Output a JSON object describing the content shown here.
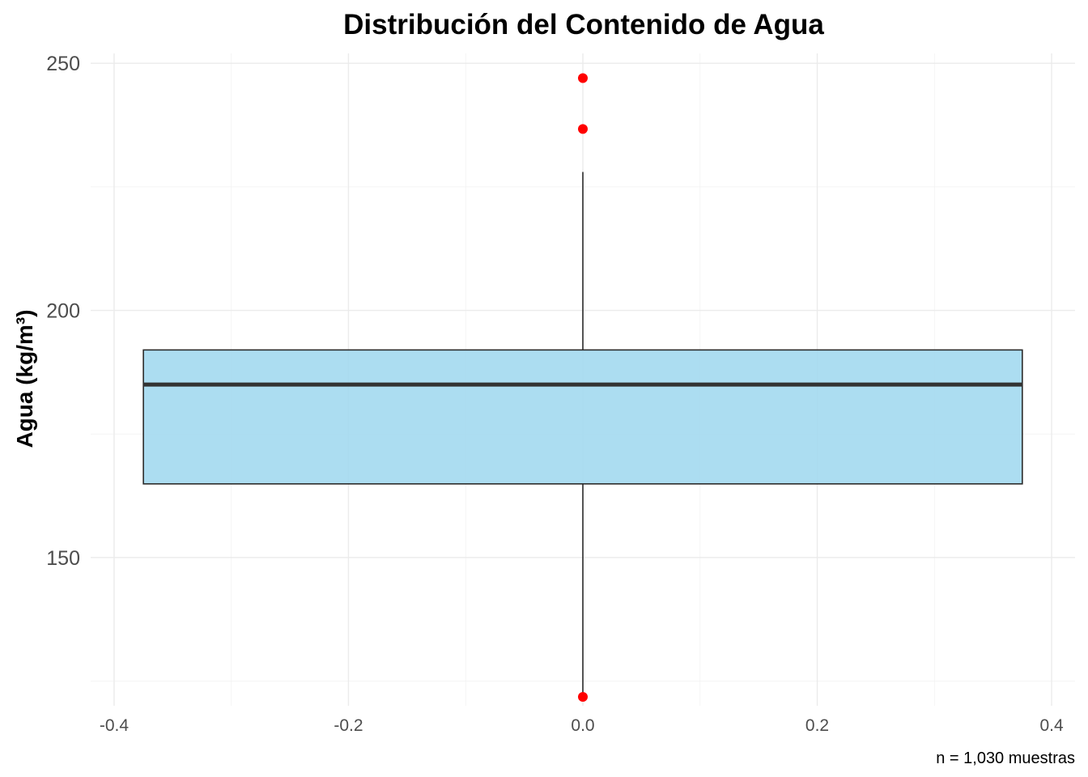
{
  "chart_data": {
    "type": "boxplot",
    "title": "Distribución del Contenido de Agua",
    "ylabel": "Agua (kg/m³)",
    "xlabel": "",
    "caption": "n = 1,030 muestras",
    "xlim": [
      -0.42,
      0.42
    ],
    "ylim": [
      120,
      252
    ],
    "x_ticks": [
      -0.4,
      -0.2,
      0.0,
      0.2,
      0.4
    ],
    "x_tick_labels": [
      "-0.4",
      "-0.2",
      "0.0",
      "0.2",
      "0.4"
    ],
    "y_ticks": [
      150,
      200,
      250
    ],
    "y_tick_labels": [
      "150",
      "200",
      "250"
    ],
    "grid": true,
    "box": {
      "x_center": 0.0,
      "width": 0.75,
      "q1": 164.9,
      "median": 185.0,
      "q3": 192.0,
      "whisker_low": 121.8,
      "whisker_high": 228.0,
      "fill": "#a3d9ef",
      "edge": "#2b2b2b"
    },
    "outliers": [
      247.0,
      236.7,
      121.8
    ],
    "outlier_color": "#ff0000"
  }
}
